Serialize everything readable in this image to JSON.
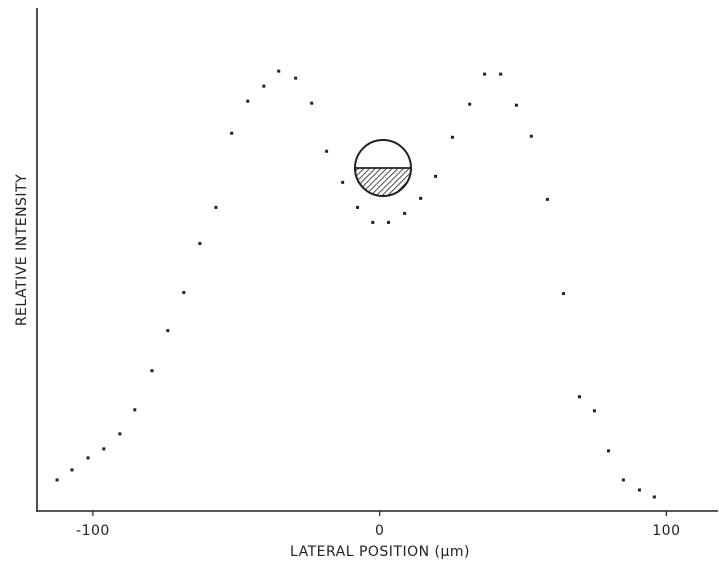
{
  "chart_data": {
    "type": "scatter",
    "x_label": "LATERAL POSITION (μm)",
    "y_label": "RELATIVE INTENSITY",
    "color": "#222222",
    "xlim": [
      -119.5,
      118
    ],
    "ylim": [
      0,
      100
    ],
    "xticks": [
      -100,
      0,
      100
    ],
    "x": [
      -112.5,
      -107.3,
      -101.7,
      -96.2,
      -90.6,
      -85.4,
      -79.4,
      -73.9,
      -68.3,
      -62.7,
      -57.1,
      -51.6,
      -46.0,
      -40.4,
      -35.2,
      -29.3,
      -23.7,
      -18.5,
      -12.9,
      -7.7,
      -2.4,
      3.1,
      8.7,
      14.3,
      19.5,
      25.4,
      31.4,
      36.6,
      42.2,
      47.7,
      52.9,
      58.5,
      64.1,
      69.7,
      74.9,
      79.8,
      85.0,
      90.6,
      95.8
    ],
    "values": [
      6.2,
      8.2,
      10.6,
      12.4,
      15.4,
      20.2,
      28,
      36,
      43.6,
      53.4,
      60.6,
      75.4,
      81.8,
      84.8,
      87.8,
      86.4,
      81.4,
      71.8,
      65.6,
      60.6,
      57.6,
      57.6,
      59.4,
      62.4,
      66.8,
      74.6,
      81.2,
      87.2,
      87.2,
      81,
      74.8,
      62.2,
      43.4,
      22.8,
      20,
      12,
      6.2,
      4.2,
      2.8
    ]
  }
}
